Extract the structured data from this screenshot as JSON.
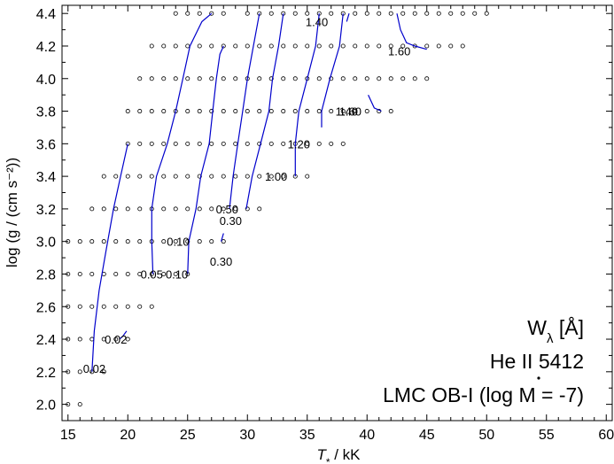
{
  "chart_data": {
    "type": "scatter",
    "title": "",
    "xlabel_main": "T",
    "xlabel_sub": "*",
    "xlabel_unit": " / kK",
    "ylabel": "log (g / (cm s⁻²))",
    "xlim": [
      14.5,
      60.5
    ],
    "ylim": [
      1.9,
      4.45
    ],
    "xticks": [
      15,
      20,
      25,
      30,
      35,
      40,
      45,
      50,
      55,
      60
    ],
    "xtick_labels": [
      "15",
      "20",
      "25",
      "30",
      "35",
      "40",
      "45",
      "50",
      "55",
      "60"
    ],
    "yticks": [
      2.0,
      2.2,
      2.4,
      2.6,
      2.8,
      3.0,
      3.2,
      3.4,
      3.6,
      3.8,
      4.0,
      4.2,
      4.4
    ],
    "ytick_labels": [
      "2.0",
      "2.2",
      "2.4",
      "2.6",
      "2.8",
      "3.0",
      "3.2",
      "3.4",
      "3.6",
      "3.8",
      "4.0",
      "4.2",
      "4.4"
    ],
    "grid": false,
    "annotation": {
      "line1": "W",
      "line1_sub": "λ",
      "line1_rest": " [Å]",
      "line2": "He II 5412",
      "line3_pre": "LMC OB-I (log ",
      "line3_m": "M",
      "line3_post": " = -7)"
    },
    "grid_points": [
      {
        "logg": 4.4,
        "teff": [
          24,
          25,
          26,
          27,
          28,
          30,
          31,
          32,
          33,
          34,
          35,
          36,
          37,
          38,
          39,
          40,
          41,
          42,
          43,
          44,
          45,
          46,
          47,
          48,
          49,
          50
        ]
      },
      {
        "logg": 4.2,
        "teff": [
          22,
          23,
          24,
          25,
          26,
          27,
          28,
          29,
          30,
          31,
          32,
          33,
          34,
          35,
          36,
          37,
          38,
          39,
          40,
          41,
          42,
          43,
          44,
          45,
          46,
          47,
          48
        ]
      },
      {
        "logg": 4.0,
        "teff": [
          21,
          22,
          23,
          24,
          25,
          26,
          27,
          28,
          29,
          30,
          31,
          32,
          33,
          34,
          35,
          36,
          37,
          38,
          39,
          40,
          41,
          42,
          43,
          44,
          45
        ]
      },
      {
        "logg": 3.8,
        "teff": [
          20,
          21,
          22,
          23,
          24,
          25,
          26,
          27,
          28,
          29,
          30,
          31,
          32,
          33,
          34,
          35,
          36,
          37,
          38,
          39,
          40,
          41,
          42
        ]
      },
      {
        "logg": 3.6,
        "teff": [
          20,
          21,
          22,
          23,
          24,
          25,
          26,
          27,
          28,
          29,
          30,
          31,
          32,
          33,
          34,
          35,
          36,
          37,
          38
        ]
      },
      {
        "logg": 3.4,
        "teff": [
          18,
          19,
          20,
          21,
          22,
          23,
          24,
          25,
          26,
          27,
          28,
          29,
          30,
          31,
          32,
          33,
          34,
          35
        ]
      },
      {
        "logg": 3.2,
        "teff": [
          17,
          18,
          19,
          20,
          21,
          22,
          23,
          24,
          25,
          26,
          27,
          28,
          29,
          30,
          31
        ]
      },
      {
        "logg": 3.0,
        "teff": [
          15,
          16,
          17,
          18,
          19,
          20,
          21,
          22,
          23,
          24,
          25,
          26,
          27,
          28
        ]
      },
      {
        "logg": 2.8,
        "teff": [
          15,
          16,
          17,
          18,
          19,
          20,
          21,
          22,
          23,
          24,
          25
        ]
      },
      {
        "logg": 2.6,
        "teff": [
          15,
          16,
          17,
          18,
          19,
          20,
          21,
          22
        ]
      },
      {
        "logg": 2.4,
        "teff": [
          15,
          16,
          17,
          18,
          19,
          20
        ]
      },
      {
        "logg": 2.2,
        "teff": [
          15,
          16,
          17,
          18
        ]
      },
      {
        "logg": 2.0,
        "teff": [
          15,
          16
        ]
      }
    ],
    "contours": [
      {
        "segments": [
          [
            [
              17.0,
              2.2
            ],
            [
              17.2,
              2.45
            ],
            [
              17.6,
              2.7
            ],
            [
              18.2,
              2.95
            ],
            [
              18.8,
              3.2
            ],
            [
              19.4,
              3.4
            ],
            [
              20.0,
              3.6
            ]
          ]
        ]
      },
      {
        "segments": [
          [
            [
              19.3,
              2.4
            ],
            [
              19.6,
              2.42
            ],
            [
              19.9,
              2.45
            ]
          ]
        ]
      },
      {
        "segments": [
          [
            [
              22.1,
              2.8
            ],
            [
              22.0,
              3.0
            ],
            [
              22.0,
              3.2
            ],
            [
              22.4,
              3.4
            ],
            [
              23.3,
              3.6
            ],
            [
              24.0,
              3.8
            ],
            [
              24.6,
              4.0
            ],
            [
              25.2,
              4.2
            ],
            [
              26.2,
              4.35
            ],
            [
              27.0,
              4.4
            ]
          ]
        ]
      },
      {
        "segments": [
          [
            [
              25.0,
              2.8
            ],
            [
              25.1,
              3.0
            ],
            [
              25.7,
              3.2
            ],
            [
              26.1,
              3.4
            ],
            [
              26.8,
              3.6
            ],
            [
              27.1,
              3.8
            ],
            [
              27.4,
              4.0
            ],
            [
              27.7,
              4.15
            ],
            [
              28.0,
              4.2
            ]
          ]
        ]
      },
      {
        "segments": [
          [
            [
              27.8,
              3.0
            ],
            [
              28.0,
              3.05
            ]
          ],
          [
            [
              28.5,
              3.2
            ],
            [
              28.8,
              3.4
            ],
            [
              29.2,
              3.6
            ],
            [
              29.6,
              3.8
            ],
            [
              30.0,
              4.0
            ],
            [
              30.5,
              4.2
            ],
            [
              31.0,
              4.4
            ]
          ]
        ]
      },
      {
        "segments": [
          [
            [
              29.9,
              3.2
            ],
            [
              30.4,
              3.4
            ],
            [
              31.1,
              3.6
            ],
            [
              31.8,
              3.8
            ],
            [
              32.1,
              4.0
            ],
            [
              32.6,
              4.2
            ],
            [
              33.0,
              4.4
            ]
          ]
        ]
      },
      {
        "segments": [
          [
            [
              34.0,
              3.4
            ],
            [
              34.0,
              3.6
            ],
            [
              34.3,
              3.8
            ],
            [
              35.0,
              4.0
            ],
            [
              35.7,
              4.2
            ],
            [
              36.0,
              4.4
            ]
          ]
        ]
      },
      {
        "segments": [
          [
            [
              36.2,
              3.7
            ],
            [
              36.2,
              3.8
            ],
            [
              36.9,
              4.0
            ],
            [
              37.7,
              4.2
            ],
            [
              38.0,
              4.4
            ]
          ],
          [
            [
              38.3,
              4.35
            ],
            [
              38.5,
              4.4
            ]
          ]
        ]
      },
      {
        "segments": [
          [
            [
              40.1,
              3.9
            ],
            [
              40.6,
              3.82
            ],
            [
              41.2,
              3.8
            ]
          ]
        ]
      },
      {
        "segments": [
          [
            [
              42.5,
              4.4
            ],
            [
              42.8,
              4.3
            ],
            [
              43.3,
              4.22
            ],
            [
              44.0,
              4.2
            ],
            [
              45.0,
              4.18
            ]
          ]
        ]
      }
    ],
    "contour_labels": [
      {
        "text": "0.02",
        "x": 17.2,
        "y": 2.22
      },
      {
        "text": "0.02",
        "x": 19.0,
        "y": 2.4
      },
      {
        "text": "0.05",
        "x": 22.0,
        "y": 2.8
      },
      {
        "text": "0.10",
        "x": 24.1,
        "y": 2.8
      },
      {
        "text": "0.10",
        "x": 24.2,
        "y": 3.0
      },
      {
        "text": "0.30",
        "x": 27.8,
        "y": 2.88
      },
      {
        "text": "0.50",
        "x": 28.3,
        "y": 3.2
      },
      {
        "text": "0.30",
        "x": 28.6,
        "y": 3.13
      },
      {
        "text": "1.00",
        "x": 32.4,
        "y": 3.4
      },
      {
        "text": "1.20",
        "x": 34.3,
        "y": 3.6
      },
      {
        "text": "1.40",
        "x": 38.3,
        "y": 3.8
      },
      {
        "text": "1.60",
        "x": 38.6,
        "y": 3.8
      },
      {
        "text": "1.40",
        "x": 35.8,
        "y": 4.35
      },
      {
        "text": "1.60",
        "x": 42.7,
        "y": 4.17
      }
    ],
    "colors": {
      "contour": "#0000cc",
      "points": "#000000",
      "axes": "#000000"
    }
  }
}
